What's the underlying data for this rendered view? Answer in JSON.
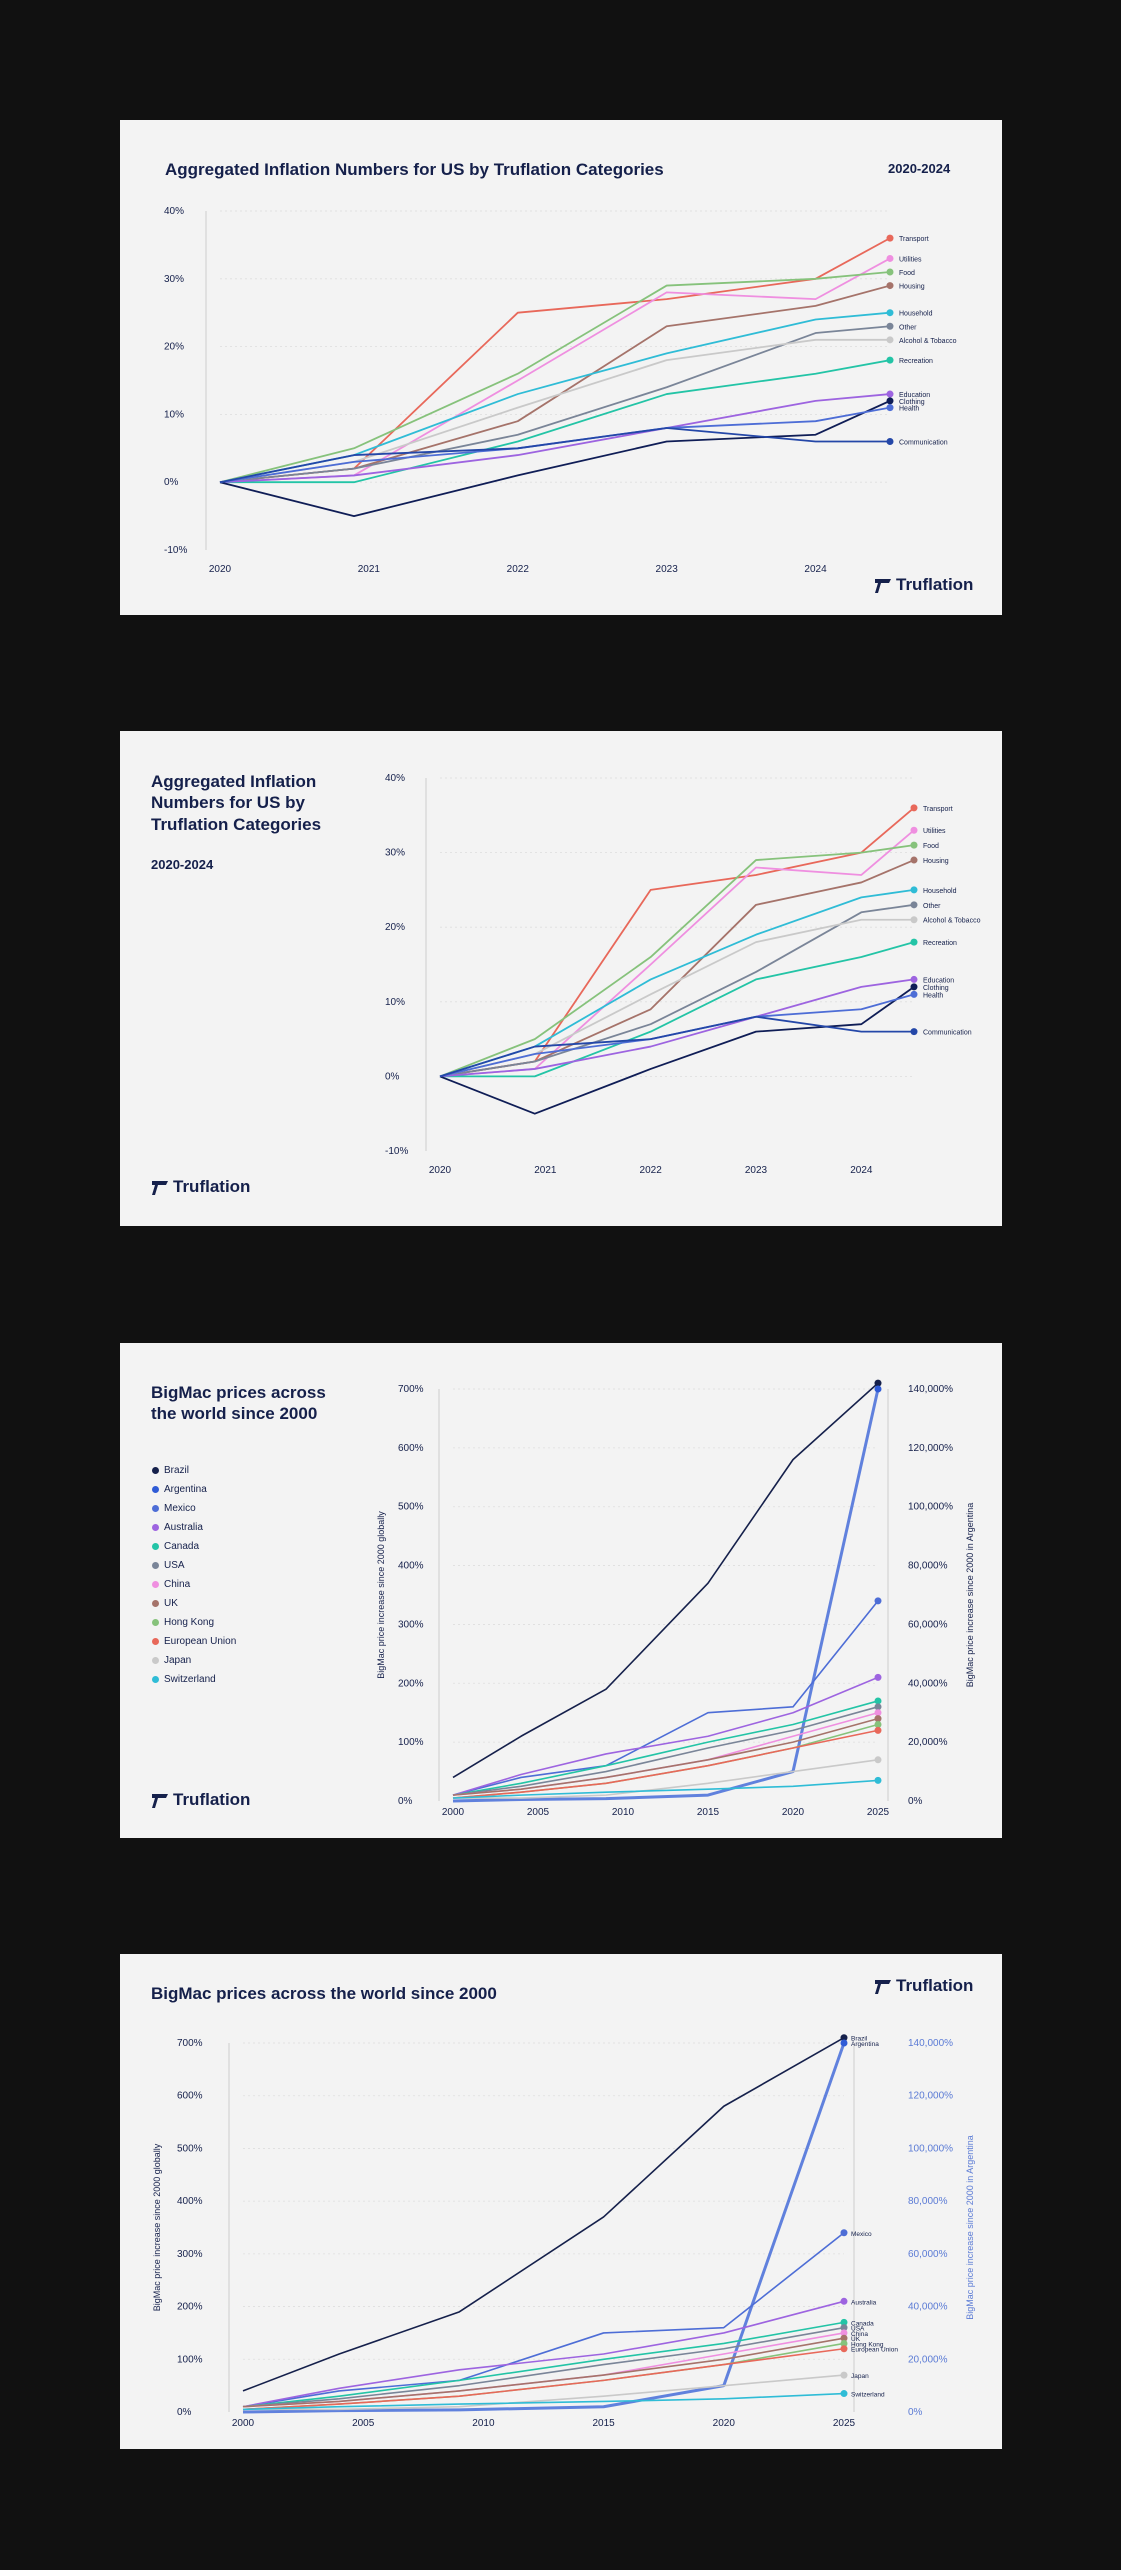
{
  "brand": "Truflation",
  "colors": {
    "background": "#111111",
    "card": "#f3f3f3",
    "text": "#15204b",
    "grid": "#dddddd",
    "accent_axis": "#5b7bd5"
  },
  "card1": {
    "title": "Aggregated Inflation Numbers for US by Truflation Categories",
    "period": "2020-2024"
  },
  "card2": {
    "title": "Aggregated Inflation Numbers for US by Truflation Categories",
    "period": "2020-2024"
  },
  "card3": {
    "title": "BigMac prices across the world since 2000"
  },
  "card4": {
    "title": "BigMac prices across the world since 2000"
  },
  "chart_data": [
    {
      "type": "line",
      "title": "Aggregated Inflation Numbers for US by Truflation Categories",
      "subtitle": "2020-2024",
      "x": [
        2020,
        2020.9,
        2022,
        2023,
        2024,
        2024.5
      ],
      "x_ticks": [
        "2020",
        "2021",
        "2022",
        "2023",
        "2024"
      ],
      "ylim": [
        -10,
        40
      ],
      "y_ticks": [
        "-10%",
        "0%",
        "10%",
        "20%",
        "30%",
        "40%"
      ],
      "grid": true,
      "legend": "right",
      "series": [
        {
          "name": "Transport",
          "color": "#e8685a",
          "values": [
            0,
            2,
            25,
            27,
            30,
            36
          ]
        },
        {
          "name": "Utilities",
          "color": "#ef8fe0",
          "values": [
            0,
            1,
            15,
            28,
            27,
            33
          ]
        },
        {
          "name": "Food",
          "color": "#86c27b",
          "values": [
            0,
            5,
            16,
            29,
            30,
            31
          ]
        },
        {
          "name": "Housing",
          "color": "#a5736a",
          "values": [
            0,
            2,
            9,
            23,
            26,
            29
          ]
        },
        {
          "name": "Household",
          "color": "#2fbcd6",
          "values": [
            0,
            4,
            13,
            19,
            24,
            25
          ]
        },
        {
          "name": "Other",
          "color": "#7a8598",
          "values": [
            0,
            2,
            7,
            14,
            22,
            23
          ]
        },
        {
          "name": "Alcohol & Tobacco",
          "color": "#c9c9c9",
          "values": [
            0,
            3,
            11,
            18,
            21,
            21
          ]
        },
        {
          "name": "Recreation",
          "color": "#23c4a6",
          "values": [
            0,
            0,
            6,
            13,
            16,
            18
          ]
        },
        {
          "name": "Education",
          "color": "#9d64e0",
          "values": [
            0,
            1,
            4,
            8,
            12,
            13
          ]
        },
        {
          "name": "Clothing",
          "color": "#0f1d56",
          "values": [
            0,
            -5,
            1,
            6,
            7,
            12
          ]
        },
        {
          "name": "Health",
          "color": "#4d6dd6",
          "values": [
            0,
            3,
            5,
            8,
            9,
            11
          ]
        },
        {
          "name": "Communication",
          "color": "#2447a8",
          "values": [
            0,
            4,
            5,
            8,
            6,
            6
          ]
        }
      ]
    },
    {
      "type": "line",
      "title": "BigMac prices across the world since 2000",
      "x": [
        2000,
        2004,
        2009,
        2015,
        2020,
        2025
      ],
      "x_ticks": [
        "2000",
        "2005",
        "2010",
        "2015",
        "2020",
        "2025"
      ],
      "ylabel": "BigMac price increase since 2000 globally",
      "ylim": [
        0,
        700
      ],
      "y_ticks": [
        "0%",
        "100%",
        "200%",
        "300%",
        "400%",
        "500%",
        "600%",
        "700%"
      ],
      "y2label": "BigMac price increase since 2000 in Argentina",
      "y2lim": [
        0,
        140000
      ],
      "y2_ticks": [
        "0%",
        "20,000%",
        "40,000%",
        "60,000%",
        "80,000%",
        "100,000%",
        "120,000%",
        "140,000%"
      ],
      "grid": true,
      "legend": "left",
      "series": [
        {
          "name": "Brazil",
          "color": "#15204b",
          "values": [
            40,
            110,
            190,
            370,
            580,
            710
          ]
        },
        {
          "name": "Argentina",
          "color": "#2f5bd6",
          "axis": "right",
          "values": [
            0,
            500,
            800,
            2000,
            10000,
            140000
          ]
        },
        {
          "name": "Mexico",
          "color": "#4d6dd6",
          "values": [
            10,
            40,
            60,
            150,
            160,
            340
          ]
        },
        {
          "name": "Australia",
          "color": "#9d64e0",
          "values": [
            10,
            45,
            80,
            110,
            150,
            210
          ]
        },
        {
          "name": "Canada",
          "color": "#23c4a6",
          "values": [
            10,
            30,
            60,
            100,
            130,
            170
          ]
        },
        {
          "name": "USA",
          "color": "#7a8598",
          "values": [
            10,
            25,
            50,
            90,
            120,
            160
          ]
        },
        {
          "name": "China",
          "color": "#ef8fe0",
          "values": [
            10,
            20,
            40,
            70,
            110,
            150
          ]
        },
        {
          "name": "UK",
          "color": "#a5736a",
          "values": [
            10,
            20,
            40,
            70,
            100,
            140
          ]
        },
        {
          "name": "Hong Kong",
          "color": "#86c27b",
          "values": [
            5,
            15,
            30,
            60,
            90,
            130
          ]
        },
        {
          "name": "European Union",
          "color": "#e8685a",
          "values": [
            5,
            15,
            30,
            60,
            90,
            120
          ]
        },
        {
          "name": "Japan",
          "color": "#c9c9c9",
          "values": [
            5,
            5,
            10,
            30,
            50,
            70
          ]
        },
        {
          "name": "Switzerland",
          "color": "#2fbcd6",
          "values": [
            5,
            10,
            15,
            20,
            25,
            35
          ]
        }
      ]
    }
  ]
}
